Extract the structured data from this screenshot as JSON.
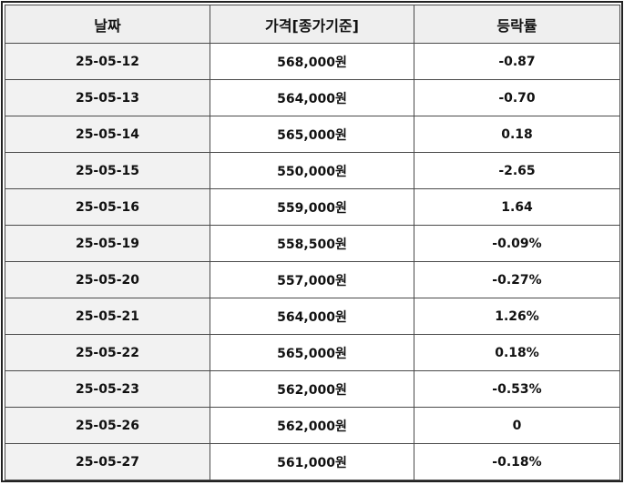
{
  "table": {
    "headers": {
      "date": "날짜",
      "price": "가격[종가기준]",
      "rate": "등락률"
    },
    "rows": [
      {
        "date": "25-05-12",
        "price": "568,000원",
        "rate": "-0.87"
      },
      {
        "date": "25-05-13",
        "price": "564,000원",
        "rate": "-0.70"
      },
      {
        "date": "25-05-14",
        "price": "565,000원",
        "rate": "0.18"
      },
      {
        "date": "25-05-15",
        "price": "550,000원",
        "rate": "-2.65"
      },
      {
        "date": "25-05-16",
        "price": "559,000원",
        "rate": "1.64"
      },
      {
        "date": "25-05-19",
        "price": "558,500원",
        "rate": "-0.09%"
      },
      {
        "date": "25-05-20",
        "price": "557,000원",
        "rate": "-0.27%"
      },
      {
        "date": "25-05-21",
        "price": "564,000원",
        "rate": "1.26%"
      },
      {
        "date": "25-05-22",
        "price": "565,000원",
        "rate": "0.18%"
      },
      {
        "date": "25-05-23",
        "price": "562,000원",
        "rate": "-0.53%"
      },
      {
        "date": "25-05-26",
        "price": "562,000원",
        "rate": "0"
      },
      {
        "date": "25-05-27",
        "price": "561,000원",
        "rate": "-0.18%"
      }
    ]
  },
  "colors": {
    "price_text": "#c0393b",
    "header_bg": "#efefef",
    "date_bg": "#f2f2f2",
    "border": "#4a4a4a"
  }
}
